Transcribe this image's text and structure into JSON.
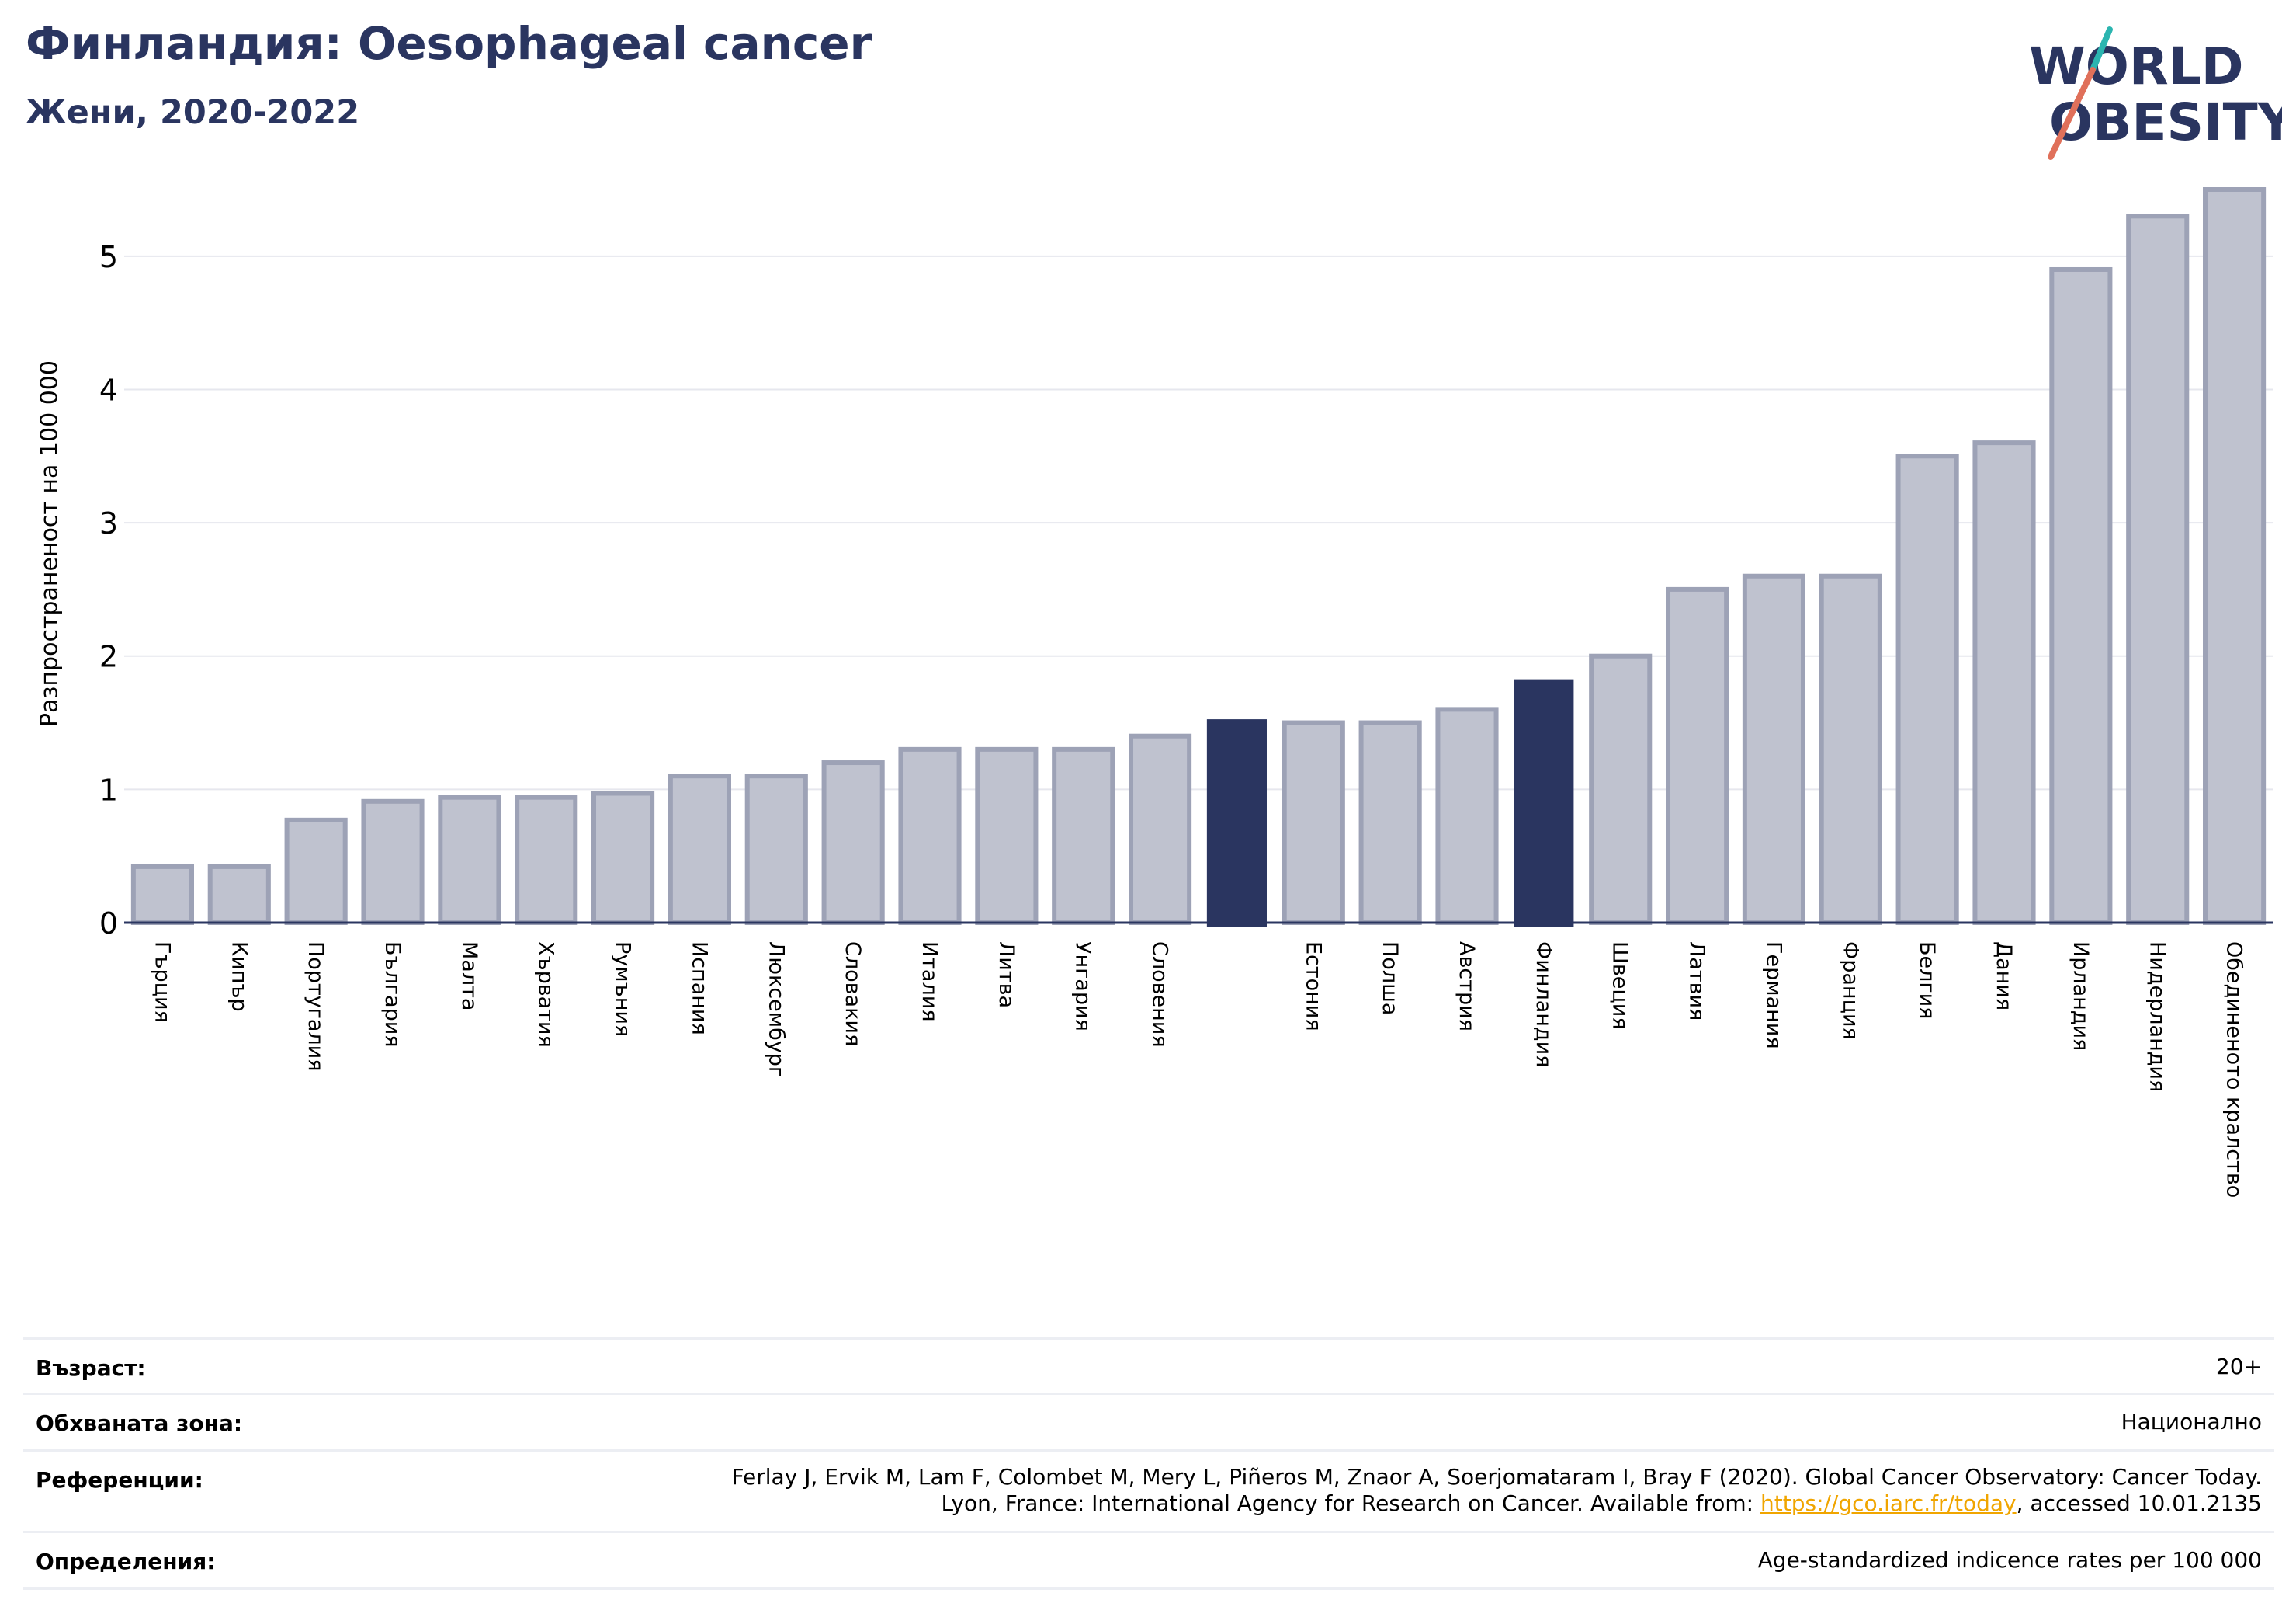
{
  "header": {
    "title": "Финландия: Oesophageal cancer",
    "subtitle": "Жени, 2020-2022"
  },
  "logo": {
    "line1": "WORLD",
    "line2": "OBESITY",
    "colors": {
      "text": "#2a3560",
      "slash_teal": "#2bb5b0",
      "slash_coral": "#e0705a"
    }
  },
  "colors": {
    "bar": "#bfc2cf",
    "bar_edge": "#9da2b6",
    "highlight": "#2a3560",
    "grid": "#e6e7ee",
    "axis": "#2a3560"
  },
  "chart_data": {
    "type": "bar",
    "title": "Финландия: Oesophageal cancer",
    "subtitle": "Жени, 2020-2022",
    "ylabel": "Разпространеност  на 100 000",
    "xlabel": "",
    "ylim": [
      0,
      5.5
    ],
    "yticks": [
      0,
      1,
      2,
      3,
      4,
      5
    ],
    "grid": true,
    "categories": [
      "Гърция",
      "Кипър",
      "Португалия",
      "България",
      "Малта",
      "Хърватия",
      "Румъния",
      "Испания",
      "Люксембург",
      "Словакия",
      "Италия",
      "Литва",
      "Унгария",
      "Словения",
      "",
      "Естония",
      "Полша",
      "Австрия",
      "Финландия",
      "Швеция",
      "Латвия",
      "Германия",
      "Франция",
      "Белгия",
      "Дания",
      "Ирландия",
      "Нидерландия",
      "Обединеното кралство"
    ],
    "values": [
      0.42,
      0.42,
      0.77,
      0.91,
      0.94,
      0.94,
      0.97,
      1.1,
      1.1,
      1.2,
      1.3,
      1.3,
      1.3,
      1.4,
      1.52,
      1.5,
      1.5,
      1.6,
      1.82,
      2.0,
      2.5,
      2.6,
      2.6,
      3.5,
      3.6,
      4.9,
      5.3,
      5.5
    ],
    "highlighted": [
      14,
      18
    ]
  },
  "footer": {
    "rows": [
      {
        "key": "Възраст:",
        "value": "20+"
      },
      {
        "key": "Обхваната зона:",
        "value": "Национално"
      },
      {
        "key": "Референции:",
        "value_line1": "Ferlay J, Ervik M, Lam F, Colombet M, Mery L, Piñeros M, Znaor A, Soerjomataram I, Bray F (2020). Global Cancer Observatory: Cancer Today.",
        "value_line2_pre": "Lyon, France: International Agency for Research on Cancer. Available from: ",
        "value_link": "https://gco.iarc.fr/today",
        "value_line2_post": ", accessed 10.01.2135"
      },
      {
        "key": "Определения:",
        "value": "Age-standardized indicence rates per 100 000"
      }
    ]
  }
}
